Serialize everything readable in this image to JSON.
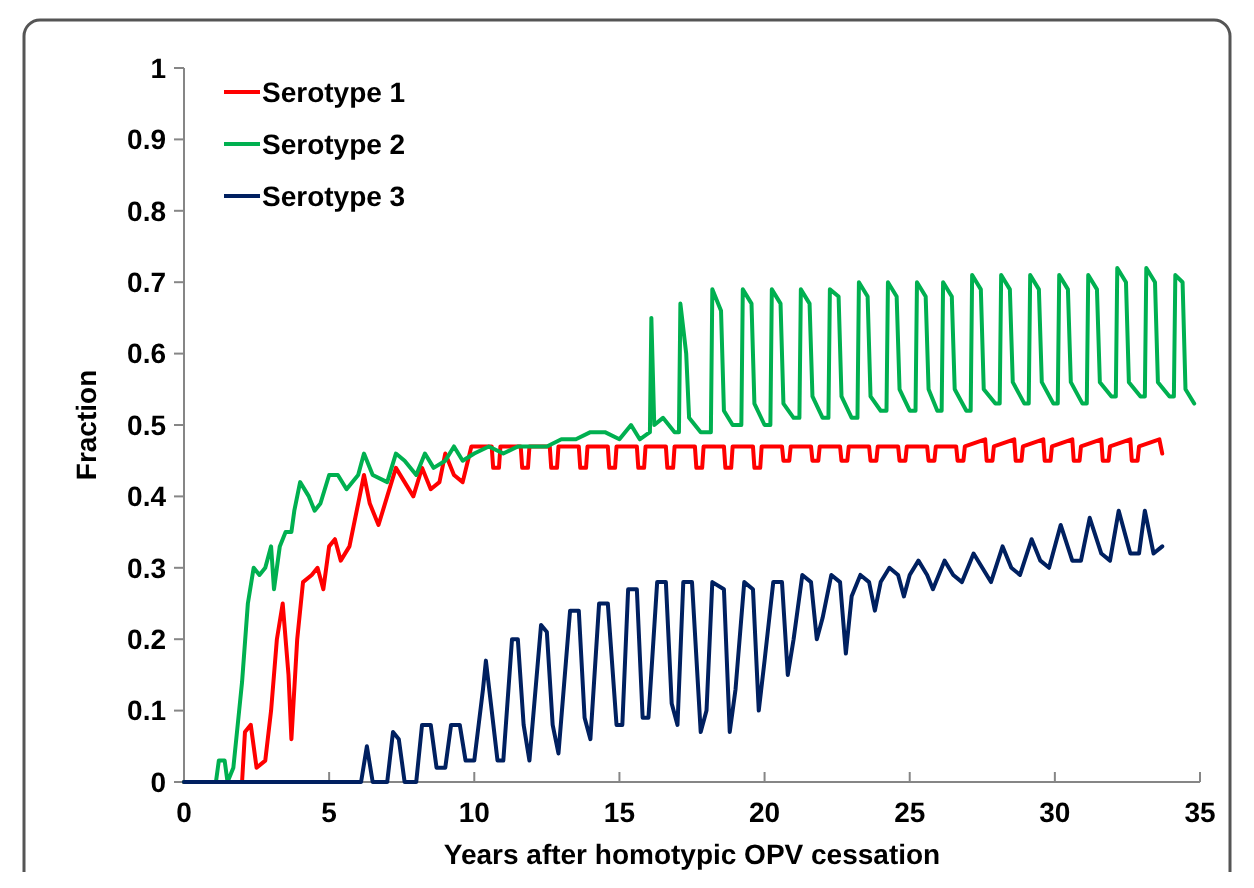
{
  "chart_data": {
    "type": "line",
    "xlabel": "Years after homotypic OPV cessation",
    "ylabel": "Fraction",
    "xlim": [
      0,
      35
    ],
    "xticks": [
      0,
      5,
      10,
      15,
      20,
      25,
      30,
      35
    ],
    "ylim": [
      0,
      1
    ],
    "yticks": [
      0,
      0.1,
      0.2,
      0.3,
      0.4,
      0.5,
      0.6,
      0.7,
      0.8,
      0.9,
      1
    ],
    "grid": false,
    "legend": "top left",
    "marker": "none",
    "line_style": "solid",
    "series": [
      {
        "name": "Serotype 1",
        "color": "#ff0000",
        "x": [
          0,
          2.0,
          2.1,
          2.3,
          2.5,
          2.8,
          3.0,
          3.2,
          3.4,
          3.6,
          3.7,
          3.9,
          4.1,
          4.4,
          4.6,
          4.8,
          5.0,
          5.2,
          5.4,
          5.7,
          6.0,
          6.2,
          6.4,
          6.7,
          7.0,
          7.3,
          7.6,
          7.9,
          8.2,
          8.5,
          8.8,
          9.0,
          9.3,
          9.6,
          9.9,
          10.6,
          10.65,
          10.85,
          10.9,
          11.6,
          11.65,
          11.85,
          11.9,
          12.6,
          12.65,
          12.85,
          12.9,
          13.6,
          13.65,
          13.85,
          13.9,
          14.6,
          14.65,
          14.85,
          14.9,
          15.6,
          15.65,
          15.85,
          15.9,
          16.6,
          16.65,
          16.85,
          16.9,
          17.6,
          17.65,
          17.85,
          17.9,
          18.6,
          18.65,
          18.85,
          18.9,
          19.6,
          19.65,
          19.85,
          19.9,
          20.6,
          20.65,
          20.85,
          20.9,
          21.6,
          21.65,
          21.85,
          21.9,
          22.6,
          22.65,
          22.85,
          22.9,
          23.6,
          23.65,
          23.85,
          23.9,
          24.6,
          24.65,
          24.85,
          24.9,
          25.6,
          25.65,
          25.85,
          25.9,
          26.6,
          26.65,
          26.85,
          26.9,
          27.6,
          27.65,
          27.85,
          27.9,
          28.6,
          28.65,
          28.85,
          28.9,
          29.6,
          29.65,
          29.85,
          29.9,
          30.6,
          30.65,
          30.85,
          30.9,
          31.6,
          31.65,
          31.85,
          31.9,
          32.6,
          32.65,
          32.85,
          32.9,
          33.6,
          33.7
        ],
        "values": [
          0,
          0,
          0.07,
          0.08,
          0.02,
          0.03,
          0.1,
          0.2,
          0.25,
          0.15,
          0.06,
          0.2,
          0.28,
          0.29,
          0.3,
          0.27,
          0.33,
          0.34,
          0.31,
          0.33,
          0.39,
          0.43,
          0.39,
          0.36,
          0.4,
          0.44,
          0.42,
          0.4,
          0.44,
          0.41,
          0.42,
          0.46,
          0.43,
          0.42,
          0.47,
          0.47,
          0.44,
          0.44,
          0.47,
          0.47,
          0.44,
          0.44,
          0.47,
          0.47,
          0.44,
          0.44,
          0.47,
          0.47,
          0.44,
          0.44,
          0.47,
          0.47,
          0.44,
          0.44,
          0.47,
          0.47,
          0.44,
          0.44,
          0.47,
          0.47,
          0.44,
          0.44,
          0.47,
          0.47,
          0.44,
          0.44,
          0.47,
          0.47,
          0.44,
          0.44,
          0.47,
          0.47,
          0.44,
          0.44,
          0.47,
          0.47,
          0.45,
          0.45,
          0.47,
          0.47,
          0.45,
          0.45,
          0.47,
          0.47,
          0.45,
          0.45,
          0.47,
          0.47,
          0.45,
          0.45,
          0.47,
          0.47,
          0.45,
          0.45,
          0.47,
          0.47,
          0.45,
          0.45,
          0.47,
          0.47,
          0.45,
          0.45,
          0.47,
          0.48,
          0.45,
          0.45,
          0.47,
          0.48,
          0.45,
          0.45,
          0.47,
          0.48,
          0.45,
          0.45,
          0.47,
          0.48,
          0.45,
          0.45,
          0.47,
          0.48,
          0.45,
          0.45,
          0.47,
          0.48,
          0.45,
          0.45,
          0.47,
          0.48,
          0.46
        ]
      },
      {
        "name": "Serotype 2",
        "color": "#00b050",
        "x": [
          0,
          1.1,
          1.2,
          1.4,
          1.5,
          1.7,
          1.9,
          2.0,
          2.2,
          2.4,
          2.6,
          2.8,
          3.0,
          3.1,
          3.3,
          3.5,
          3.7,
          3.8,
          4.0,
          4.3,
          4.5,
          4.7,
          5.0,
          5.3,
          5.6,
          6.0,
          6.2,
          6.5,
          7.0,
          7.3,
          7.6,
          8.0,
          8.3,
          8.6,
          9.0,
          9.3,
          9.6,
          10.0,
          10.5,
          11.0,
          11.5,
          12.0,
          12.5,
          13.0,
          13.5,
          14.0,
          14.5,
          15.0,
          15.4,
          15.7,
          16.05,
          16.1,
          16.2,
          16.5,
          16.9,
          17.05,
          17.1,
          17.3,
          17.4,
          17.8,
          18.15,
          18.2,
          18.5,
          18.6,
          18.9,
          19.2,
          19.25,
          19.55,
          19.65,
          20.0,
          20.2,
          20.25,
          20.55,
          20.65,
          21.0,
          21.2,
          21.25,
          21.55,
          21.65,
          22.0,
          22.2,
          22.25,
          22.55,
          22.65,
          23.0,
          23.2,
          23.25,
          23.55,
          23.65,
          24.0,
          24.2,
          24.25,
          24.55,
          24.65,
          25.0,
          25.2,
          25.25,
          25.55,
          25.65,
          25.95,
          26.1,
          26.15,
          26.45,
          26.55,
          26.95,
          27.1,
          27.15,
          27.45,
          27.55,
          27.95,
          28.1,
          28.15,
          28.45,
          28.55,
          28.95,
          29.1,
          29.15,
          29.45,
          29.55,
          29.95,
          30.1,
          30.15,
          30.45,
          30.55,
          30.95,
          31.1,
          31.15,
          31.45,
          31.55,
          31.95,
          32.1,
          32.15,
          32.45,
          32.55,
          32.95,
          33.1,
          33.15,
          33.45,
          33.55,
          33.95,
          34.1,
          34.15,
          34.4,
          34.5,
          34.8
        ],
        "values": [
          0,
          0,
          0.03,
          0.03,
          0,
          0.02,
          0.1,
          0.14,
          0.25,
          0.3,
          0.29,
          0.3,
          0.33,
          0.27,
          0.33,
          0.35,
          0.35,
          0.38,
          0.42,
          0.4,
          0.38,
          0.39,
          0.43,
          0.43,
          0.41,
          0.43,
          0.46,
          0.43,
          0.42,
          0.46,
          0.45,
          0.43,
          0.46,
          0.44,
          0.45,
          0.47,
          0.45,
          0.46,
          0.47,
          0.46,
          0.47,
          0.47,
          0.47,
          0.48,
          0.48,
          0.49,
          0.49,
          0.48,
          0.5,
          0.48,
          0.49,
          0.65,
          0.5,
          0.51,
          0.49,
          0.49,
          0.67,
          0.6,
          0.51,
          0.49,
          0.49,
          0.69,
          0.66,
          0.52,
          0.5,
          0.5,
          0.69,
          0.67,
          0.53,
          0.5,
          0.5,
          0.69,
          0.67,
          0.53,
          0.51,
          0.51,
          0.69,
          0.67,
          0.54,
          0.51,
          0.51,
          0.69,
          0.68,
          0.54,
          0.51,
          0.51,
          0.7,
          0.68,
          0.54,
          0.52,
          0.52,
          0.7,
          0.68,
          0.55,
          0.52,
          0.52,
          0.7,
          0.68,
          0.55,
          0.52,
          0.52,
          0.7,
          0.68,
          0.55,
          0.52,
          0.52,
          0.71,
          0.69,
          0.55,
          0.53,
          0.53,
          0.71,
          0.69,
          0.56,
          0.53,
          0.53,
          0.71,
          0.69,
          0.56,
          0.53,
          0.53,
          0.71,
          0.69,
          0.56,
          0.53,
          0.53,
          0.71,
          0.69,
          0.56,
          0.54,
          0.54,
          0.72,
          0.7,
          0.56,
          0.54,
          0.54,
          0.72,
          0.7,
          0.56,
          0.54,
          0.54,
          0.71,
          0.7,
          0.55,
          0.53
        ]
      },
      {
        "name": "Serotype 3",
        "color": "#002060",
        "x": [
          0,
          6.1,
          6.3,
          6.5,
          7.0,
          7.2,
          7.4,
          7.6,
          8.0,
          8.2,
          8.5,
          8.7,
          9.0,
          9.2,
          9.5,
          9.7,
          10.0,
          10.3,
          10.4,
          10.6,
          10.8,
          11.0,
          11.3,
          11.5,
          11.7,
          11.9,
          12.3,
          12.5,
          12.7,
          12.9,
          13.3,
          13.6,
          13.8,
          14.0,
          14.3,
          14.6,
          14.9,
          15.1,
          15.3,
          15.6,
          15.8,
          16.0,
          16.3,
          16.6,
          16.8,
          17.0,
          17.2,
          17.5,
          17.8,
          18.0,
          18.2,
          18.6,
          18.8,
          19.0,
          19.3,
          19.6,
          19.8,
          20.0,
          20.3,
          20.6,
          20.8,
          21.0,
          21.3,
          21.6,
          21.8,
          22.0,
          22.3,
          22.6,
          22.8,
          23.0,
          23.3,
          23.6,
          23.8,
          24.0,
          24.3,
          24.6,
          24.8,
          25.0,
          25.3,
          25.6,
          25.8,
          26.2,
          26.5,
          26.8,
          27.2,
          27.5,
          27.8,
          28.2,
          28.5,
          28.8,
          29.2,
          29.5,
          29.8,
          30.2,
          30.6,
          30.9,
          31.2,
          31.6,
          31.9,
          32.2,
          32.6,
          32.9,
          33.1,
          33.4,
          33.7
        ],
        "values": [
          0,
          0,
          0.05,
          0,
          0,
          0.07,
          0.06,
          0,
          0,
          0.08,
          0.08,
          0.02,
          0.02,
          0.08,
          0.08,
          0.03,
          0.03,
          0.13,
          0.17,
          0.1,
          0.03,
          0.03,
          0.2,
          0.2,
          0.08,
          0.03,
          0.22,
          0.21,
          0.08,
          0.04,
          0.24,
          0.24,
          0.09,
          0.06,
          0.25,
          0.25,
          0.08,
          0.08,
          0.27,
          0.27,
          0.09,
          0.09,
          0.28,
          0.28,
          0.11,
          0.08,
          0.28,
          0.28,
          0.07,
          0.1,
          0.28,
          0.27,
          0.07,
          0.13,
          0.28,
          0.27,
          0.1,
          0.17,
          0.28,
          0.28,
          0.15,
          0.2,
          0.29,
          0.28,
          0.2,
          0.23,
          0.29,
          0.28,
          0.18,
          0.26,
          0.29,
          0.28,
          0.24,
          0.28,
          0.3,
          0.29,
          0.26,
          0.29,
          0.31,
          0.29,
          0.27,
          0.31,
          0.29,
          0.28,
          0.32,
          0.3,
          0.28,
          0.33,
          0.3,
          0.29,
          0.34,
          0.31,
          0.3,
          0.36,
          0.31,
          0.31,
          0.37,
          0.32,
          0.31,
          0.38,
          0.32,
          0.32,
          0.38,
          0.32,
          0.33
        ]
      }
    ]
  }
}
